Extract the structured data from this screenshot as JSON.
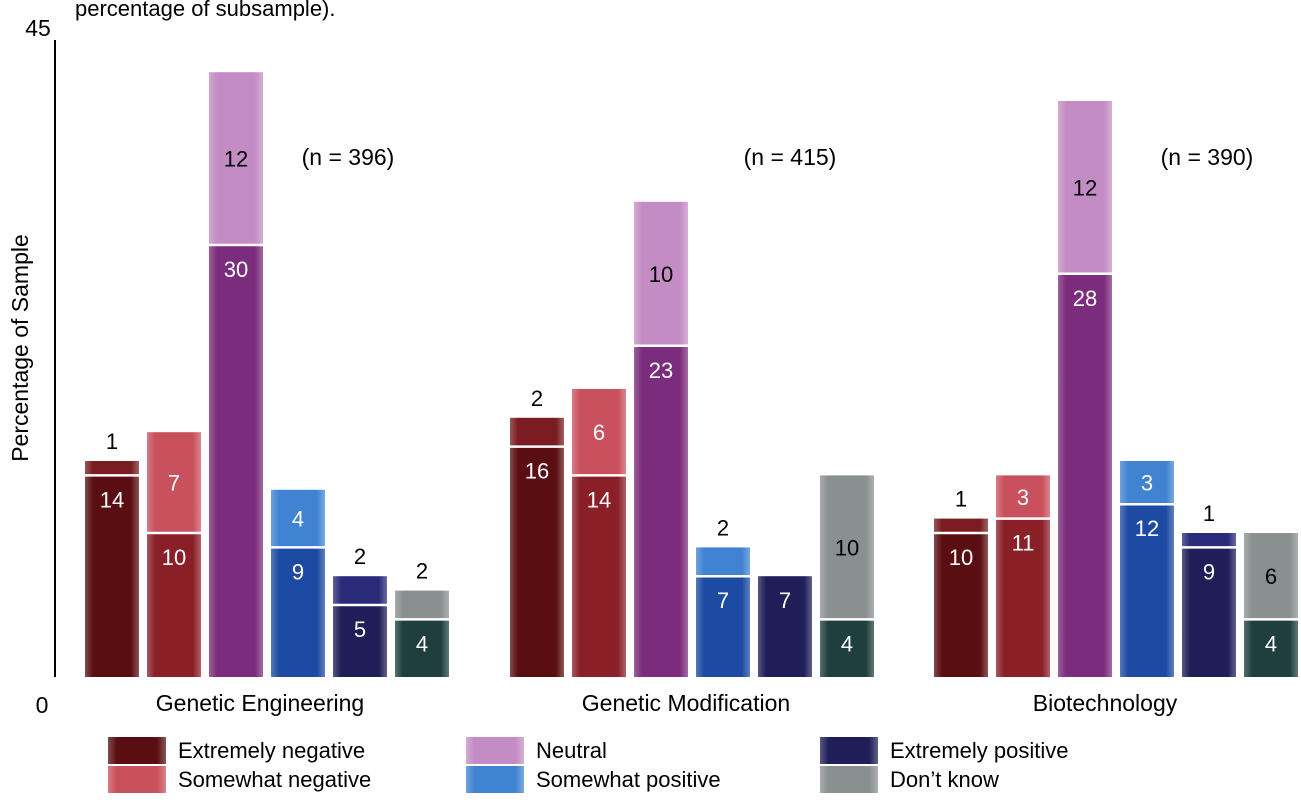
{
  "chart_data": {
    "type": "bar",
    "subtype": "stacked-grouped",
    "title_fragment": "percentage of subsample).",
    "ylabel": "Percentage of Sample",
    "ylim": [
      0,
      45
    ],
    "y_ticks": [
      "0",
      "45"
    ],
    "grid": false,
    "legend_placement": "bottom",
    "categories": [
      "Genetic Engineering",
      "Genetic Modification",
      "Biotechnology"
    ],
    "sample_sizes": [
      "(n = 396)",
      "(n = 415)",
      "(n = 390)"
    ],
    "series": [
      {
        "name": "Extremely negative",
        "color_dark": "#5a0e12",
        "color_light": "#7a1c22",
        "segments": [
          [
            14,
            1
          ],
          [
            16,
            2
          ],
          [
            10,
            1
          ]
        ],
        "segment_labels": [
          [
            "14",
            "1"
          ],
          [
            "16",
            "2"
          ],
          [
            "10",
            "1"
          ]
        ]
      },
      {
        "name": "Somewhat negative",
        "color_dark": "#8a1f28",
        "color_light": "#c9505d",
        "segments": [
          [
            10,
            7
          ],
          [
            14,
            6
          ],
          [
            11,
            3
          ]
        ],
        "segment_labels": [
          [
            "10",
            "7"
          ],
          [
            "14",
            "6"
          ],
          [
            "11",
            "3"
          ]
        ]
      },
      {
        "name": "Neutral",
        "color_dark": "#7c2c7c",
        "color_light": "#c48cc4",
        "segments": [
          [
            30,
            12
          ],
          [
            23,
            10
          ],
          [
            28,
            12
          ]
        ],
        "segment_labels": [
          [
            "30",
            "12"
          ],
          [
            "23",
            "10"
          ],
          [
            "28",
            "12"
          ]
        ]
      },
      {
        "name": "Somewhat positive",
        "color_dark": "#1d4aa2",
        "color_light": "#3f83d2",
        "segments": [
          [
            9,
            4
          ],
          [
            7,
            2
          ],
          [
            12,
            3
          ]
        ],
        "segment_labels": [
          [
            "9",
            "4"
          ],
          [
            "7",
            "2"
          ],
          [
            "12",
            "3"
          ]
        ]
      },
      {
        "name": "Extremely positive",
        "color_dark": "#1f1e58",
        "color_light": "#2a2a7a",
        "segments": [
          [
            5,
            2
          ],
          [
            7,
            0
          ],
          [
            9,
            1
          ]
        ],
        "segment_labels": [
          [
            "5",
            "2"
          ],
          [
            "7",
            ""
          ],
          [
            "9",
            "1"
          ]
        ]
      },
      {
        "name": "Don’t know",
        "color_dark": "#1e3f3e",
        "color_light": "#8a8f8f",
        "segments": [
          [
            4,
            2
          ],
          [
            4,
            10
          ],
          [
            4,
            6
          ]
        ],
        "segment_labels": [
          [
            "4",
            "2"
          ],
          [
            "4",
            "10"
          ],
          [
            "4",
            "6"
          ]
        ]
      }
    ]
  }
}
